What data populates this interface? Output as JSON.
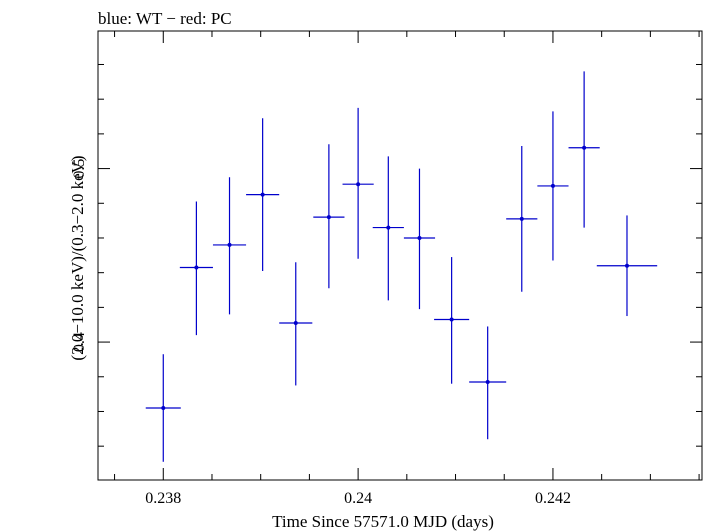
{
  "chart_data": {
    "type": "scatter",
    "title": "blue: WT − red: PC",
    "xlabel": "Time Since 57571.0 MJD (days)",
    "ylabel": "(2.0−10.0 keV)/(0.3−2.0 keV)",
    "xlim": [
      0.23733,
      0.24353
    ],
    "ylim": [
      0.3205,
      0.5793
    ],
    "x_ticks": [
      0.238,
      0.24,
      0.242
    ],
    "x_tick_labels": [
      "0.238",
      "0.24",
      "0.242"
    ],
    "y_ticks": [
      0.4,
      0.5
    ],
    "y_tick_labels": [
      "0.4",
      "0.5"
    ],
    "grid": false,
    "series": [
      {
        "color": "#0000cc",
        "points": [
          {
            "x": 0.238,
            "y": 0.362,
            "xerr": 0.00018,
            "ylo": 0.331,
            "yhi": 0.393
          },
          {
            "x": 0.23834,
            "y": 0.443,
            "xerr": 0.00017,
            "ylo": 0.404,
            "yhi": 0.481
          },
          {
            "x": 0.23868,
            "y": 0.456,
            "xerr": 0.00017,
            "ylo": 0.416,
            "yhi": 0.495
          },
          {
            "x": 0.23902,
            "y": 0.485,
            "xerr": 0.00017,
            "ylo": 0.441,
            "yhi": 0.529
          },
          {
            "x": 0.23936,
            "y": 0.411,
            "xerr": 0.00017,
            "ylo": 0.375,
            "yhi": 0.446
          },
          {
            "x": 0.2397,
            "y": 0.472,
            "xerr": 0.00016,
            "ylo": 0.431,
            "yhi": 0.514
          },
          {
            "x": 0.24,
            "y": 0.491,
            "xerr": 0.00016,
            "ylo": 0.448,
            "yhi": 0.535
          },
          {
            "x": 0.24031,
            "y": 0.466,
            "xerr": 0.00016,
            "ylo": 0.424,
            "yhi": 0.507
          },
          {
            "x": 0.24063,
            "y": 0.46,
            "xerr": 0.00016,
            "ylo": 0.419,
            "yhi": 0.5
          },
          {
            "x": 0.24096,
            "y": 0.413,
            "xerr": 0.00018,
            "ylo": 0.376,
            "yhi": 0.449
          },
          {
            "x": 0.24133,
            "y": 0.377,
            "xerr": 0.00019,
            "ylo": 0.344,
            "yhi": 0.409
          },
          {
            "x": 0.24168,
            "y": 0.471,
            "xerr": 0.00016,
            "ylo": 0.429,
            "yhi": 0.513
          },
          {
            "x": 0.242,
            "y": 0.49,
            "xerr": 0.00016,
            "ylo": 0.447,
            "yhi": 0.533
          },
          {
            "x": 0.24232,
            "y": 0.512,
            "xerr": 0.00016,
            "ylo": 0.466,
            "yhi": 0.556
          },
          {
            "x": 0.24276,
            "y": 0.444,
            "xerr": 0.00031,
            "ylo": 0.415,
            "yhi": 0.473
          }
        ]
      }
    ]
  }
}
